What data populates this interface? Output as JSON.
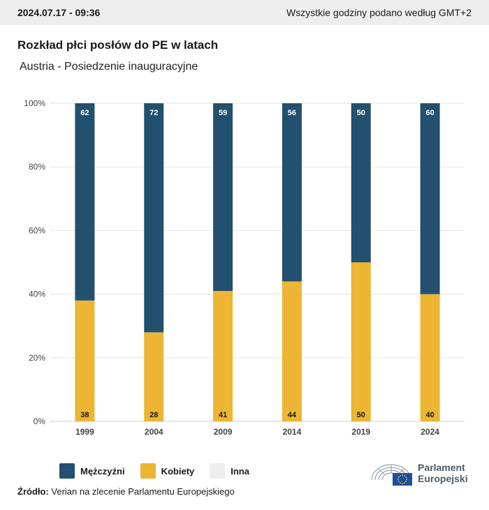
{
  "header": {
    "timestamp": "2024.07.17 - 09:36",
    "timezone_note": "Wszystkie godziny podano według GMT+2"
  },
  "title": "Rozkład płci posłów do PE w latach",
  "subtitle": "Austria - Posiedzenie inauguracyjne",
  "chart_data": {
    "type": "bar",
    "stacked": true,
    "categories": [
      "1999",
      "2004",
      "2009",
      "2014",
      "2019",
      "2024"
    ],
    "series": [
      {
        "name": "Mężczyźni",
        "values": [
          62,
          72,
          59,
          56,
          50,
          60
        ],
        "color": "#22506e"
      },
      {
        "name": "Kobiety",
        "values": [
          38,
          28,
          41,
          44,
          50,
          40
        ],
        "color": "#ecb534"
      },
      {
        "name": "Inna",
        "values": [
          0,
          0,
          0,
          0,
          0,
          0
        ],
        "color": "#eeeeef"
      }
    ],
    "yticks": [
      "0%",
      "20%",
      "40%",
      "60%",
      "80%",
      "100%"
    ],
    "ylim": [
      0,
      100
    ],
    "grid": true,
    "legend_position": "bottom-left"
  },
  "source": {
    "label": "Źródło:",
    "text": "Verian na zlecenie Parlamentu Europejskiego"
  },
  "logo": {
    "line1": "Parlament",
    "line2": "Europejski",
    "flag_color": "#1f4f9e",
    "star_color": "#ffd700"
  }
}
